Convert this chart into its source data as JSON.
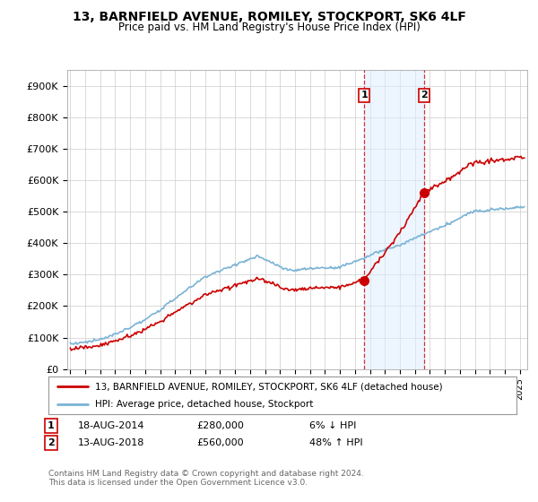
{
  "title": "13, BARNFIELD AVENUE, ROMILEY, STOCKPORT, SK6 4LF",
  "subtitle": "Price paid vs. HM Land Registry's House Price Index (HPI)",
  "ylabel_ticks": [
    "£0",
    "£100K",
    "£200K",
    "£300K",
    "£400K",
    "£500K",
    "£600K",
    "£700K",
    "£800K",
    "£900K"
  ],
  "ytick_values": [
    0,
    100000,
    200000,
    300000,
    400000,
    500000,
    600000,
    700000,
    800000,
    900000
  ],
  "ylim": [
    0,
    950000
  ],
  "xlim_start": 1994.8,
  "xlim_end": 2025.5,
  "hpi_color": "#7ab3d4",
  "price_color": "#cc0000",
  "transaction1_date": 2014.63,
  "transaction1_price": 280000,
  "transaction2_date": 2018.62,
  "transaction2_price": 560000,
  "shade_color": "#ddeeff",
  "shade_alpha": 0.5,
  "legend_line1": "13, BARNFIELD AVENUE, ROMILEY, STOCKPORT, SK6 4LF (detached house)",
  "legend_line2": "HPI: Average price, detached house, Stockport",
  "ann1_num": "1",
  "ann1_date": "18-AUG-2014",
  "ann1_price": "£280,000",
  "ann1_hpi": "6% ↓ HPI",
  "ann2_num": "2",
  "ann2_date": "13-AUG-2018",
  "ann2_price": "£560,000",
  "ann2_hpi": "48% ↑ HPI",
  "footer": "Contains HM Land Registry data © Crown copyright and database right 2024.\nThis data is licensed under the Open Government Licence v3.0.",
  "background_color": "#ffffff"
}
